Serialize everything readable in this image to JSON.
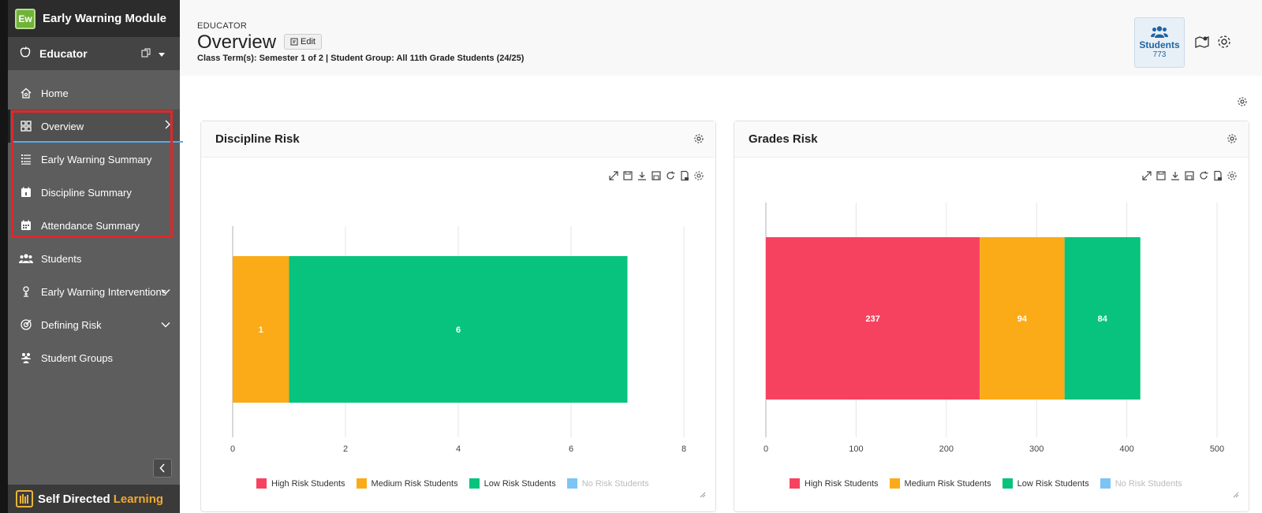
{
  "app": {
    "logo_text": "Ew",
    "title": "Early Warning Module",
    "role": "Educator",
    "footer_brand_main": "Self Directed",
    "footer_brand_accent": "Learning"
  },
  "sidebar": {
    "items": [
      {
        "label": "Home"
      },
      {
        "label": "Overview"
      },
      {
        "label": "Early Warning Summary"
      },
      {
        "label": "Discipline Summary"
      },
      {
        "label": "Attendance Summary"
      },
      {
        "label": "Students"
      },
      {
        "label": "Early Warning Interventions"
      },
      {
        "label": "Defining Risk"
      },
      {
        "label": "Student Groups"
      }
    ]
  },
  "header": {
    "breadcrumb": "EDUCATOR",
    "title": "Overview",
    "edit_label": "Edit",
    "filter_text": "Class Term(s): Semester 1 of 2 | Student Group: All 11th Grade Students (24/25)",
    "students_label": "Students",
    "students_count": "773"
  },
  "widgets": [
    {
      "title": "Discipline Risk"
    },
    {
      "title": "Grades Risk"
    }
  ],
  "legend": [
    {
      "label": "High Risk Students",
      "color": "#f7425f"
    },
    {
      "label": "Medium Risk Students",
      "color": "#fbab18"
    },
    {
      "label": "Low Risk Students",
      "color": "#08c37d"
    },
    {
      "label": "No Risk Students",
      "color": "#7cc4f4",
      "hidden": true
    }
  ],
  "chart_data": [
    {
      "type": "bar",
      "orientation": "horizontal",
      "stacked": true,
      "title": "Discipline Risk",
      "series": [
        {
          "name": "High Risk Students",
          "values": [
            0
          ]
        },
        {
          "name": "Medium Risk Students",
          "values": [
            1
          ]
        },
        {
          "name": "Low Risk Students",
          "values": [
            6
          ]
        },
        {
          "name": "No Risk Students",
          "values": [
            0
          ]
        }
      ],
      "data_labels": [
        "1",
        "6"
      ],
      "xlim": [
        0,
        8
      ],
      "xticks": [
        "0",
        "2",
        "4",
        "6",
        "8"
      ],
      "grid": true,
      "legend_position": "bottom"
    },
    {
      "type": "bar",
      "orientation": "horizontal",
      "stacked": true,
      "title": "Grades Risk",
      "series": [
        {
          "name": "High Risk Students",
          "values": [
            237
          ]
        },
        {
          "name": "Medium Risk Students",
          "values": [
            94
          ]
        },
        {
          "name": "Low Risk Students",
          "values": [
            84
          ]
        },
        {
          "name": "No Risk Students",
          "values": [
            0
          ]
        }
      ],
      "data_labels": [
        "237",
        "94",
        "84"
      ],
      "xlim": [
        0,
        500
      ],
      "xticks": [
        "0",
        "100",
        "200",
        "300",
        "400",
        "500"
      ],
      "grid": true,
      "legend_position": "bottom"
    }
  ]
}
